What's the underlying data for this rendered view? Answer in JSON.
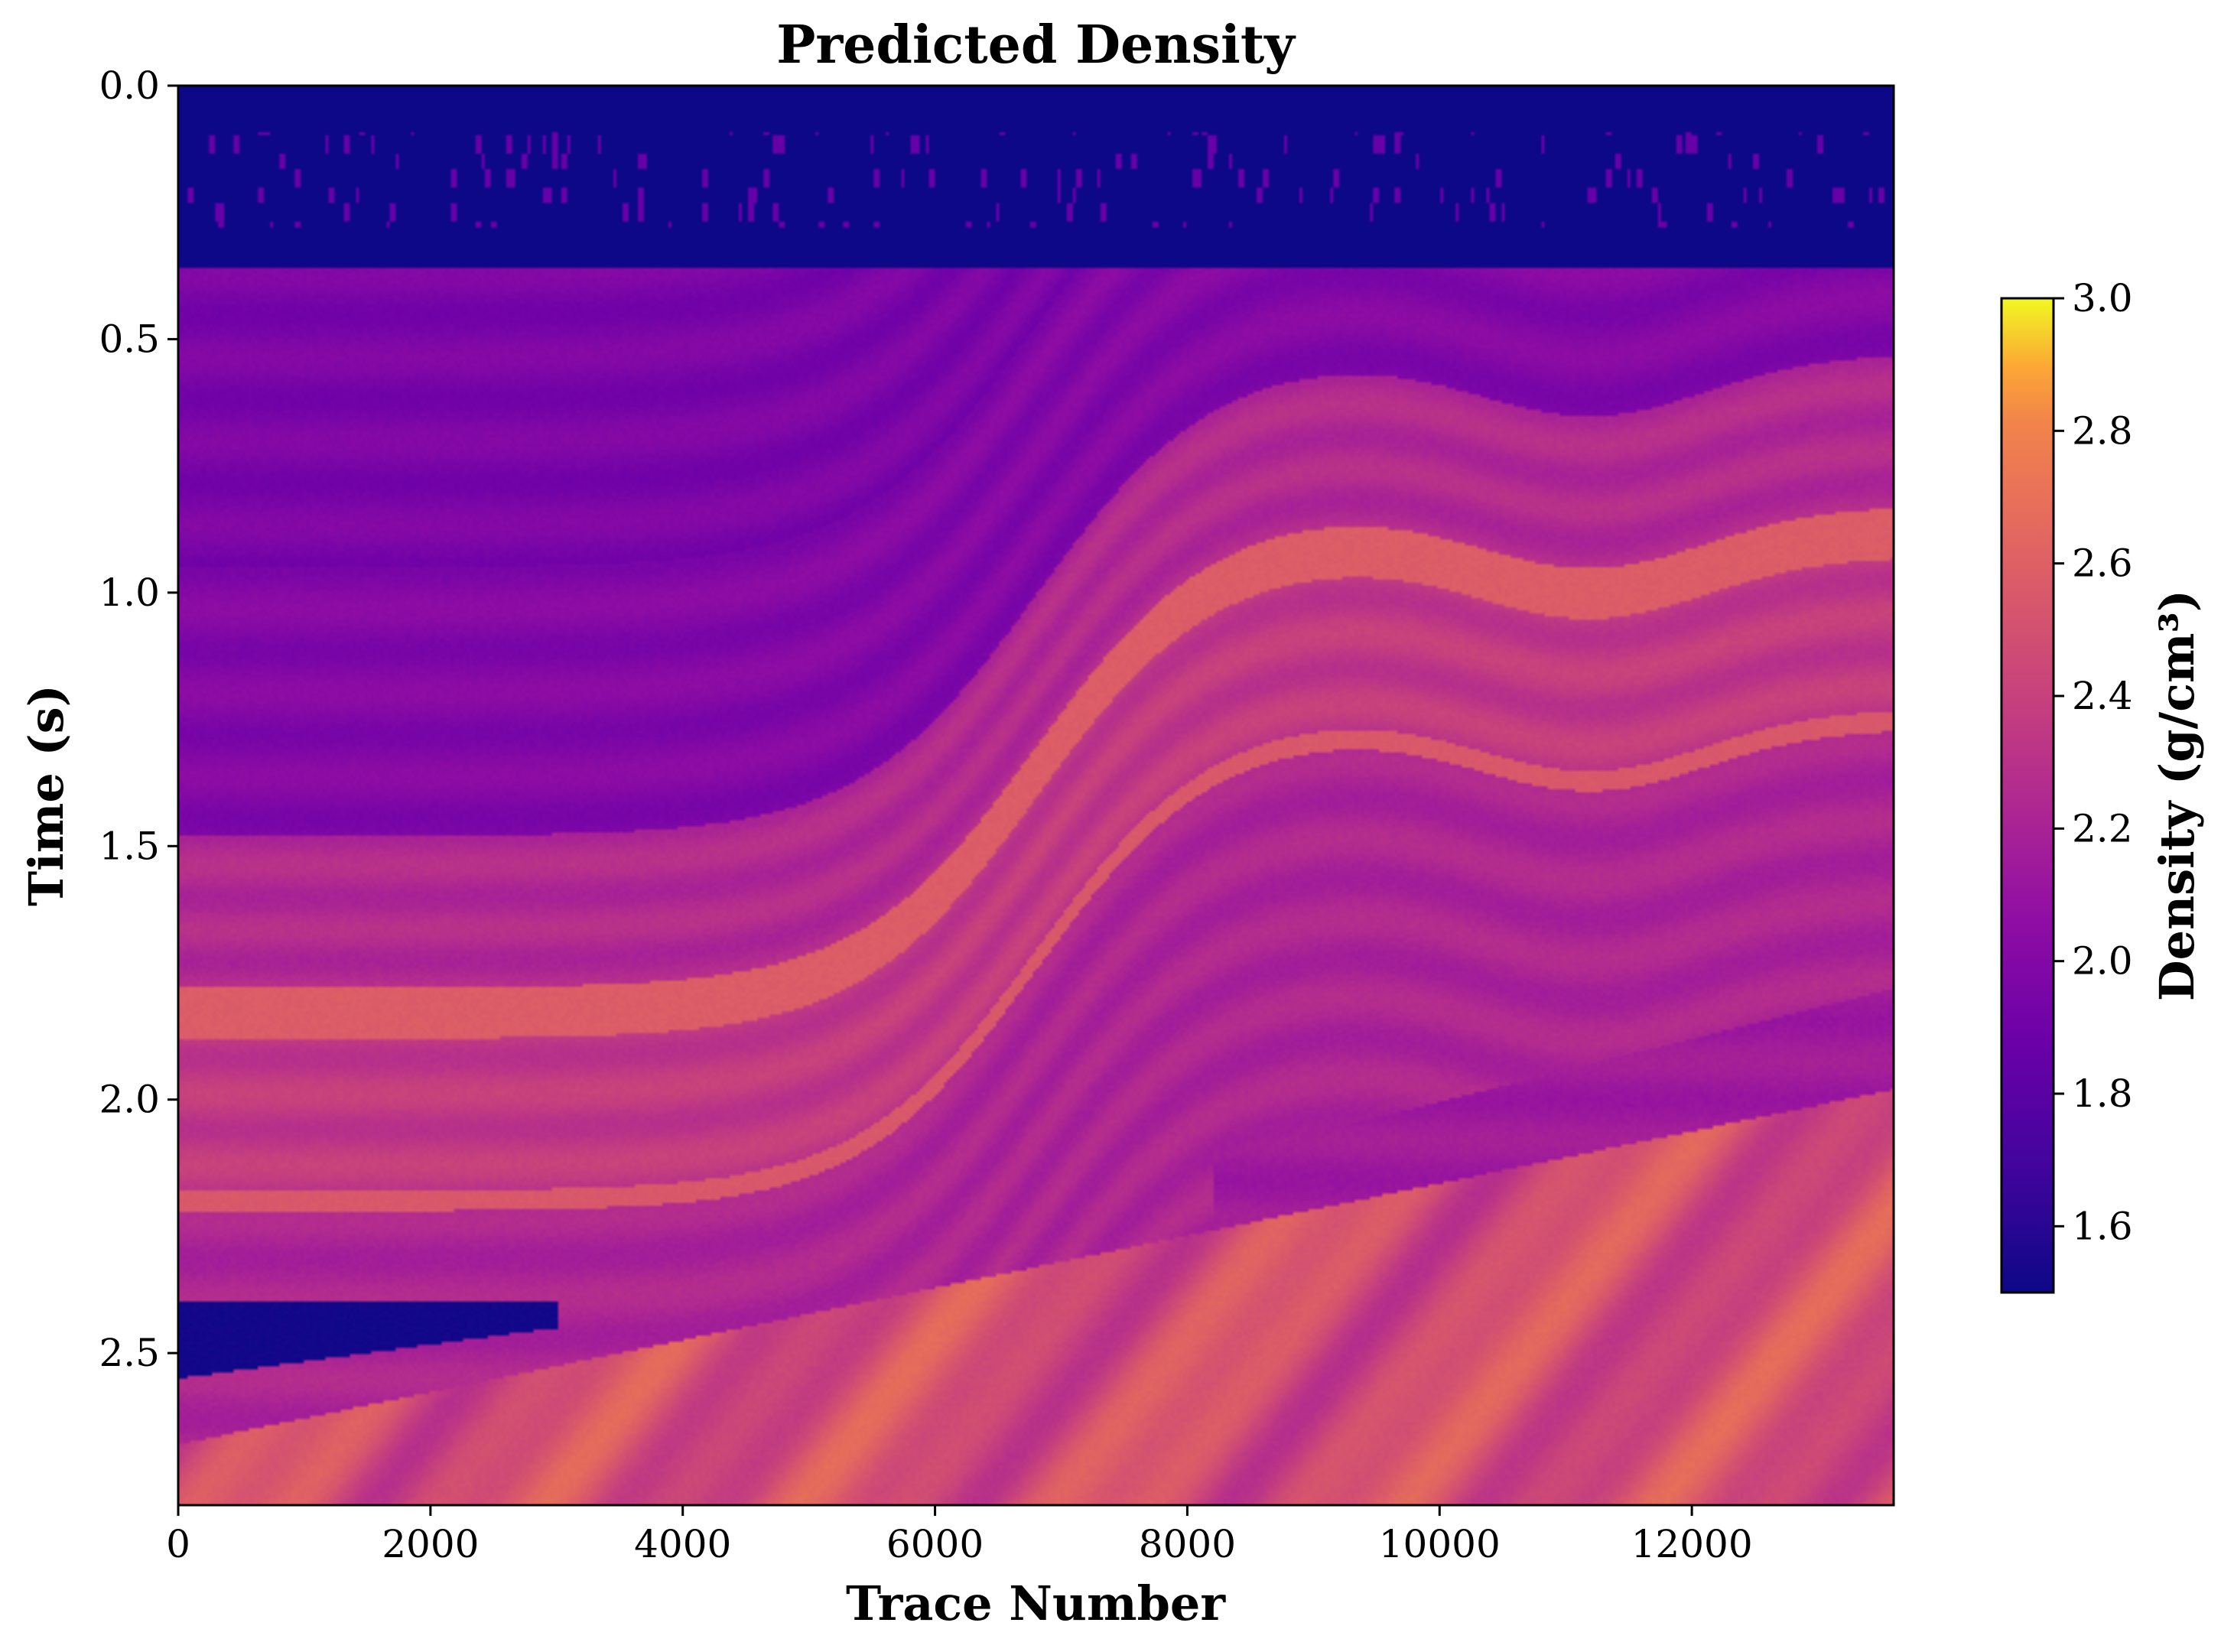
{
  "chart_data": {
    "type": "heatmap",
    "title": "Predicted Density",
    "xlabel": "Trace Number",
    "ylabel": "Time (s)",
    "xlim": [
      0,
      13600
    ],
    "ylim": [
      2.8,
      0.0
    ],
    "y_axis_inverted": true,
    "x_ticks": [
      {
        "value": 0,
        "label": "0"
      },
      {
        "value": 2000,
        "label": "2000"
      },
      {
        "value": 4000,
        "label": "4000"
      },
      {
        "value": 6000,
        "label": "6000"
      },
      {
        "value": 8000,
        "label": "8000"
      },
      {
        "value": 10000,
        "label": "10000"
      },
      {
        "value": 12000,
        "label": "12000"
      }
    ],
    "y_ticks": [
      {
        "value": 0.0,
        "label": "0.0"
      },
      {
        "value": 0.5,
        "label": "0.5"
      },
      {
        "value": 1.0,
        "label": "1.0"
      },
      {
        "value": 1.5,
        "label": "1.5"
      },
      {
        "value": 2.0,
        "label": "2.0"
      },
      {
        "value": 2.5,
        "label": "2.5"
      }
    ],
    "colorbar": {
      "label": "Density (g/cm³)",
      "colormap": "plasma",
      "range": [
        1.5,
        3.0
      ],
      "ticks": [
        {
          "value": 1.6,
          "label": "1.6"
        },
        {
          "value": 1.8,
          "label": "1.8"
        },
        {
          "value": 2.0,
          "label": "2.0"
        },
        {
          "value": 2.2,
          "label": "2.2"
        },
        {
          "value": 2.4,
          "label": "2.4"
        },
        {
          "value": 2.6,
          "label": "2.6"
        },
        {
          "value": 2.8,
          "label": "2.8"
        },
        {
          "value": 3.0,
          "label": "3.0"
        }
      ]
    },
    "description_of_field": {
      "water_layer_time_range_s": [
        0.0,
        0.36
      ],
      "water_layer_density": 1.5,
      "upper_sediment_density": 2.05,
      "lower_sediment_density": 2.4,
      "deep_layer_density": 2.6,
      "max_density": 2.8
    },
    "grid": false,
    "legend": "none"
  }
}
